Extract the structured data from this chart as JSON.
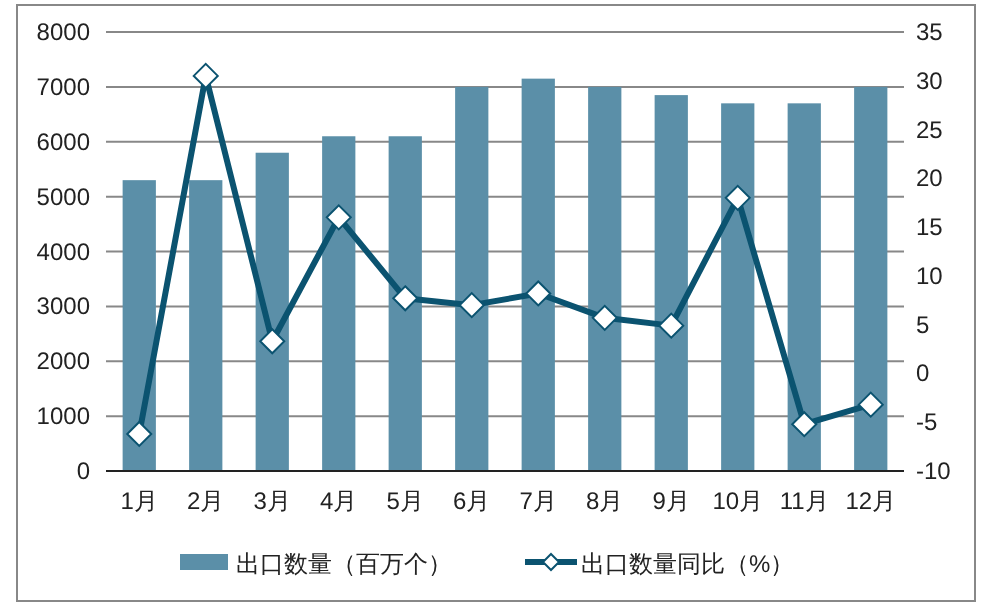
{
  "chart_data": {
    "type": "bar",
    "categories": [
      "1月",
      "2月",
      "3月",
      "4月",
      "5月",
      "6月",
      "7月",
      "8月",
      "9月",
      "10月",
      "11月",
      "12月"
    ],
    "series": [
      {
        "name": "出口数量（百万个）",
        "type": "bar",
        "color": "#5b8fa8",
        "values": [
          5300,
          5300,
          5800,
          6100,
          6100,
          7000,
          7150,
          7000,
          6850,
          6700,
          6700,
          7000
        ]
      },
      {
        "name": "出口数量同比（%）",
        "type": "line",
        "axis": "y2",
        "color": "#0b5370",
        "marker": "diamond",
        "values": [
          -6.2,
          30.5,
          3.3,
          16,
          7.7,
          7,
          8.2,
          5.7,
          4.9,
          18,
          -5.2,
          -3.2
        ]
      }
    ],
    "ylim": [
      0,
      8000
    ],
    "yticks": [
      0,
      1000,
      2000,
      3000,
      4000,
      5000,
      6000,
      7000,
      8000
    ],
    "y2lim": [
      -10,
      35
    ],
    "y2ticks": [
      -10,
      -5,
      0,
      5,
      10,
      15,
      20,
      25,
      30,
      35
    ],
    "grid": "y",
    "legend": "bottom"
  }
}
